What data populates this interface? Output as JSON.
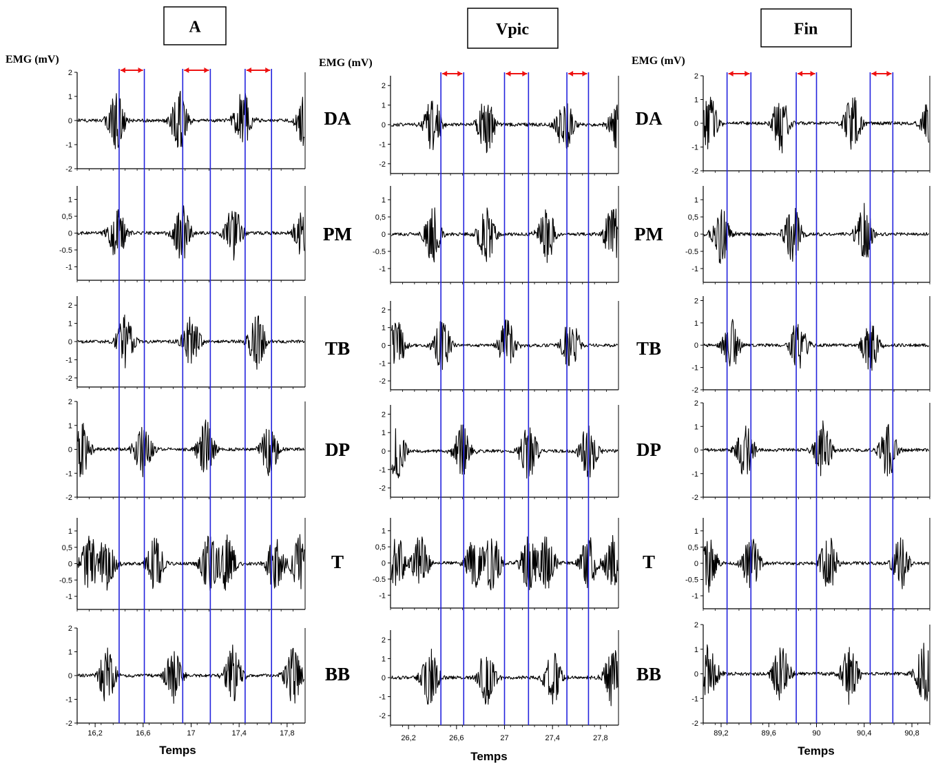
{
  "colors": {
    "signal": "#000000",
    "marker": "#2222dd",
    "arrow": "#ee1111",
    "frame": "#000000"
  },
  "chart_data": [
    {
      "type": "line",
      "title": "A",
      "ylabel": "EMG (mV)",
      "xlabel": "Temps",
      "xlim": [
        16.05,
        17.95
      ],
      "x_ticks": [
        16.2,
        16.6,
        17,
        17.4,
        17.8
      ],
      "x_tick_labels": [
        "16,2",
        "16,6",
        "17",
        "17,4",
        "17,8"
      ],
      "markers": [
        [
          16.4,
          16.61
        ],
        [
          16.93,
          17.16
        ],
        [
          17.45,
          17.67
        ]
      ],
      "bursts": {
        "DA": [
          16.38,
          16.9,
          17.43,
          17.95
        ],
        "PM": [
          16.38,
          16.92,
          17.35,
          17.93
        ],
        "TB": [
          16.45,
          17.0,
          17.55
        ],
        "DP": [
          16.08,
          16.6,
          17.12,
          17.65
        ],
        "T": [
          16.15,
          16.3,
          16.7,
          17.15,
          17.3,
          17.7,
          17.9
        ],
        "BB": [
          16.3,
          16.85,
          17.35,
          17.85
        ]
      },
      "panels": [
        {
          "label": "DA",
          "ylim": [
            -2,
            2
          ],
          "ticks": [
            "2",
            "1",
            "0",
            "-1",
            "-2"
          ],
          "tick_values": [
            2,
            1,
            0,
            -1,
            -2
          ]
        },
        {
          "label": "PM",
          "ylim": [
            -1.4,
            1.4
          ],
          "ticks": [
            "1",
            "0,5",
            "0",
            "-0.5",
            "-1"
          ],
          "tick_values": [
            1,
            0.5,
            0,
            -0.5,
            -1
          ]
        },
        {
          "label": "TB",
          "ylim": [
            -2.5,
            2.5
          ],
          "ticks": [
            "2",
            "1",
            "0",
            "-1",
            "-2"
          ],
          "tick_values": [
            2,
            1,
            0,
            -1,
            -2
          ]
        },
        {
          "label": "DP",
          "ylim": [
            -2,
            2
          ],
          "ticks": [
            "2",
            "1",
            "0",
            "-1",
            "-2"
          ],
          "tick_values": [
            2,
            1,
            0,
            -1,
            -2
          ]
        },
        {
          "label": "T",
          "ylim": [
            -1.4,
            1.4
          ],
          "ticks": [
            "1",
            "0,5",
            "0",
            "-0.5",
            "-1"
          ],
          "tick_values": [
            1,
            0.5,
            0,
            -0.5,
            -1
          ]
        },
        {
          "label": "BB",
          "ylim": [
            -2,
            2
          ],
          "ticks": [
            "2",
            "1",
            "0",
            "-1",
            "-2"
          ],
          "tick_values": [
            2,
            1,
            0,
            -1,
            -2
          ]
        }
      ]
    },
    {
      "type": "line",
      "title": "Vpic",
      "ylabel": "EMG (mV)",
      "xlabel": "Temps",
      "xlim": [
        26.05,
        27.95
      ],
      "x_ticks": [
        26.2,
        26.6,
        27,
        27.4,
        27.8
      ],
      "x_tick_labels": [
        "26,2",
        "26,6",
        "27",
        "27,4",
        "27,8"
      ],
      "markers": [
        [
          26.47,
          26.66
        ],
        [
          27.0,
          27.2
        ],
        [
          27.52,
          27.7
        ]
      ],
      "bursts": {
        "DA": [
          26.4,
          26.85,
          27.5,
          27.95
        ],
        "PM": [
          26.4,
          26.85,
          27.35,
          27.9
        ],
        "TB": [
          26.1,
          26.48,
          27.02,
          27.55
        ],
        "DP": [
          26.1,
          26.65,
          27.2,
          27.7
        ],
        "T": [
          26.1,
          26.3,
          26.75,
          26.9,
          27.2,
          27.35,
          27.7,
          27.9
        ],
        "BB": [
          26.38,
          26.85,
          27.4,
          27.9
        ]
      },
      "panels": [
        {
          "label": "DA",
          "ylim": [
            -2.5,
            2.5
          ],
          "ticks": [
            "2",
            "1",
            "0",
            "-1",
            "-2"
          ],
          "tick_values": [
            2,
            1,
            0,
            -1,
            -2
          ]
        },
        {
          "label": "PM",
          "ylim": [
            -1.4,
            1.4
          ],
          "ticks": [
            "1",
            "0,5",
            "0",
            "-0.5",
            "-1"
          ],
          "tick_values": [
            1,
            0.5,
            0,
            -0.5,
            -1
          ]
        },
        {
          "label": "TB",
          "ylim": [
            -2.5,
            2.5
          ],
          "ticks": [
            "2",
            "1",
            "0",
            "-1",
            "-2"
          ],
          "tick_values": [
            2,
            1,
            0,
            -1,
            -2
          ]
        },
        {
          "label": "DP",
          "ylim": [
            -2.5,
            2.5
          ],
          "ticks": [
            "2",
            "1",
            "0",
            "-1",
            "-2"
          ],
          "tick_values": [
            2,
            1,
            0,
            -1,
            -2
          ]
        },
        {
          "label": "T",
          "ylim": [
            -1.4,
            1.4
          ],
          "ticks": [
            "1",
            "0,5",
            "0",
            "-0.5",
            "-1"
          ],
          "tick_values": [
            1,
            0.5,
            0,
            -0.5,
            -1
          ]
        },
        {
          "label": "BB",
          "ylim": [
            -2.5,
            2.5
          ],
          "ticks": [
            "2",
            "1",
            "0",
            "-1",
            "-2"
          ],
          "tick_values": [
            2,
            1,
            0,
            -1,
            -2
          ]
        }
      ]
    },
    {
      "type": "line",
      "title": "Fin",
      "ylabel": "EMG (mV)",
      "xlabel": "Temps",
      "xlim": [
        89.05,
        90.95
      ],
      "x_ticks": [
        89.2,
        89.6,
        90,
        90.4,
        90.8
      ],
      "x_tick_labels": [
        "89,2",
        "89,6",
        "90",
        "90,4",
        "90,8"
      ],
      "markers": [
        [
          89.25,
          89.45
        ],
        [
          89.83,
          90.0
        ],
        [
          90.45,
          90.64
        ]
      ],
      "bursts": {
        "DA": [
          89.1,
          89.7,
          90.3,
          90.95
        ],
        "PM": [
          89.2,
          89.8,
          90.4
        ],
        "TB": [
          89.28,
          89.85,
          90.45
        ],
        "DP": [
          89.4,
          90.05,
          90.6
        ],
        "T": [
          89.1,
          89.45,
          90.1,
          90.7
        ],
        "BB": [
          89.1,
          89.7,
          90.28,
          90.9
        ]
      },
      "panels": [
        {
          "label": "DA",
          "ylim": [
            -2,
            2
          ],
          "ticks": [
            "2",
            "1",
            "0",
            "-1",
            "-2"
          ],
          "tick_values": [
            2,
            1,
            0,
            -1,
            -2
          ]
        },
        {
          "label": "PM",
          "ylim": [
            -1.4,
            1.4
          ],
          "ticks": [
            "1",
            "0,5",
            "0",
            "-0.5",
            "-1"
          ],
          "tick_values": [
            1,
            0.5,
            0,
            -0.5,
            -1
          ]
        },
        {
          "label": "TB",
          "ylim": [
            -2,
            2.2
          ],
          "ticks": [
            "2",
            "1",
            "0",
            "-1",
            "-2"
          ],
          "tick_values": [
            2,
            1,
            0,
            -1,
            -2
          ]
        },
        {
          "label": "DP",
          "ylim": [
            -2,
            2
          ],
          "ticks": [
            "2",
            "1",
            "0",
            "-1",
            "-2"
          ],
          "tick_values": [
            2,
            1,
            0,
            -1,
            -2
          ]
        },
        {
          "label": "T",
          "ylim": [
            -1.4,
            1.4
          ],
          "ticks": [
            "1",
            "0,5",
            "0",
            "-0.5",
            "-1"
          ],
          "tick_values": [
            1,
            0.5,
            0,
            -0.5,
            -1
          ]
        },
        {
          "label": "BB",
          "ylim": [
            -2,
            2
          ],
          "ticks": [
            "2",
            "1",
            "0",
            "-1",
            "-2"
          ],
          "tick_values": [
            2,
            1,
            0,
            -1,
            -2
          ]
        }
      ]
    }
  ]
}
